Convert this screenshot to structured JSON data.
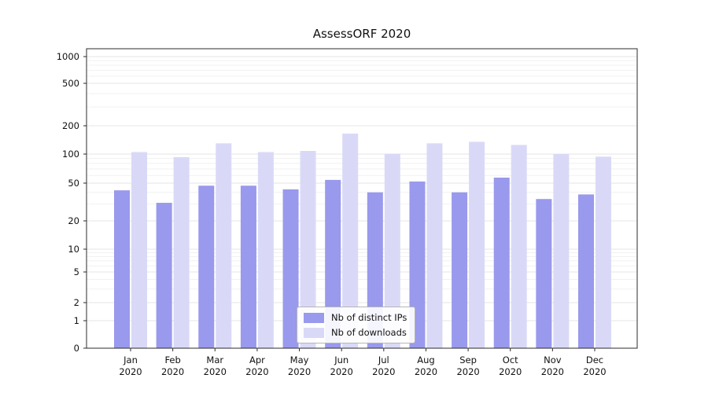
{
  "chart_data": {
    "type": "bar",
    "title": "AssessORF 2020",
    "categories": [
      "Jan",
      "Feb",
      "Mar",
      "Apr",
      "May",
      "Jun",
      "Jul",
      "Aug",
      "Sep",
      "Oct",
      "Nov",
      "Dec"
    ],
    "year_label": "2020",
    "series": [
      {
        "name": "Nb of distinct IPs",
        "color": "#9999ed",
        "values": [
          42,
          31,
          47,
          47,
          43,
          54,
          40,
          52,
          40,
          57,
          34,
          38
        ]
      },
      {
        "name": "Nb of downloads",
        "color": "#d9d9f7",
        "values": [
          105,
          93,
          130,
          105,
          108,
          165,
          101,
          130,
          135,
          125,
          100,
          94
        ]
      }
    ],
    "yticks": [
      0,
      1,
      2,
      5,
      10,
      20,
      50,
      100,
      200,
      500,
      1000
    ],
    "yscale": "symlog",
    "ylim": [
      0,
      1000
    ],
    "grid": true,
    "legend_position": "lower center"
  }
}
